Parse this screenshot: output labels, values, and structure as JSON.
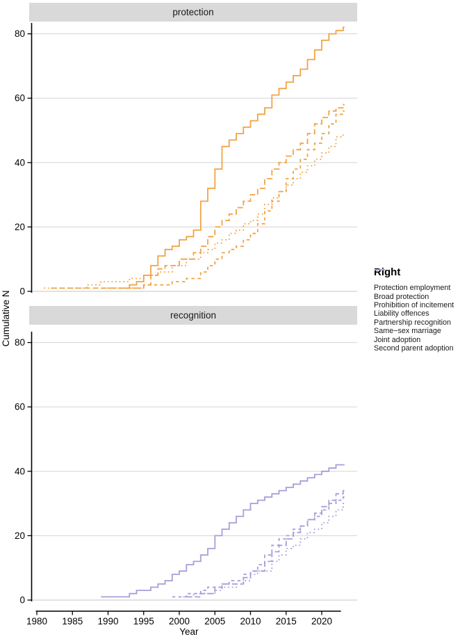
{
  "chart_data": {
    "type": "line",
    "subtype": "cumulative-step",
    "title": "",
    "xlabel": "Year",
    "ylabel": "Cumulative N",
    "x_ticks": [
      1980,
      1985,
      1990,
      1995,
      2000,
      2005,
      2010,
      2015,
      2020
    ],
    "y_ticks": [
      0,
      20,
      40,
      60,
      80
    ],
    "xlim": [
      1980,
      2023
    ],
    "ylim": [
      0,
      85
    ],
    "grid": "horizontal-only",
    "legend_position": "right",
    "colors": {
      "protection": "#F0A345",
      "recognition": "#AB9CD9",
      "strip_bg": "#D9D9D9",
      "gridline": "#D9D9D9",
      "axis": "#000000"
    },
    "legend": {
      "title": "Right",
      "items": [
        {
          "label": "Protection employment",
          "color": "#F0A345",
          "dash": "solid"
        },
        {
          "label": "Broad protection",
          "color": "#F0A345",
          "dash": "longdash"
        },
        {
          "label": "Prohibition of incitement",
          "color": "#F0A345",
          "dash": "dotted"
        },
        {
          "label": "Liability offences",
          "color": "#F0A345",
          "dash": "dashed"
        },
        {
          "label": "Partnership recognition",
          "color": "#AB9CD9",
          "dash": "solid"
        },
        {
          "label": "Same−sex marriage",
          "color": "#AB9CD9",
          "dash": "longdash"
        },
        {
          "label": "Joint adoption",
          "color": "#AB9CD9",
          "dash": "dotted"
        },
        {
          "label": "Second parent adoption",
          "color": "#AB9CD9",
          "dash": "dashed"
        }
      ]
    },
    "facets": [
      {
        "label": "protection",
        "series": [
          {
            "name": "Protection employment",
            "color": "#F0A345",
            "dash": "solid",
            "points": [
              [
                1992,
                1
              ],
              [
                1993,
                2
              ],
              [
                1994,
                3
              ],
              [
                1995,
                5
              ],
              [
                1996,
                8
              ],
              [
                1997,
                11
              ],
              [
                1998,
                13
              ],
              [
                1999,
                14
              ],
              [
                2000,
                16
              ],
              [
                2001,
                17
              ],
              [
                2002,
                19
              ],
              [
                2003,
                28
              ],
              [
                2004,
                32
              ],
              [
                2005,
                38
              ],
              [
                2006,
                45
              ],
              [
                2007,
                47
              ],
              [
                2008,
                49
              ],
              [
                2009,
                51
              ],
              [
                2010,
                53
              ],
              [
                2011,
                55
              ],
              [
                2012,
                57
              ],
              [
                2013,
                61
              ],
              [
                2014,
                63
              ],
              [
                2015,
                65
              ],
              [
                2016,
                67
              ],
              [
                2017,
                69
              ],
              [
                2018,
                72
              ],
              [
                2019,
                75
              ],
              [
                2020,
                78
              ],
              [
                2021,
                80
              ],
              [
                2022,
                81
              ],
              [
                2023,
                82
              ]
            ]
          },
          {
            "name": "Broad protection",
            "color": "#F0A345",
            "dash": "longdash",
            "points": [
              [
                1982,
                1
              ],
              [
                1995,
                2
              ],
              [
                1996,
                5
              ],
              [
                1997,
                7
              ],
              [
                1998,
                8
              ],
              [
                2000,
                10
              ],
              [
                2002,
                12
              ],
              [
                2003,
                14
              ],
              [
                2004,
                17
              ],
              [
                2005,
                20
              ],
              [
                2006,
                22
              ],
              [
                2007,
                24
              ],
              [
                2008,
                26
              ],
              [
                2009,
                28
              ],
              [
                2010,
                30
              ],
              [
                2011,
                32
              ],
              [
                2012,
                35
              ],
              [
                2013,
                38
              ],
              [
                2014,
                40
              ],
              [
                2015,
                42
              ],
              [
                2016,
                44
              ],
              [
                2017,
                46
              ],
              [
                2018,
                49
              ],
              [
                2019,
                52
              ],
              [
                2020,
                54
              ],
              [
                2021,
                56
              ],
              [
                2022,
                57
              ],
              [
                2023,
                58
              ]
            ]
          },
          {
            "name": "Prohibition of incitement",
            "color": "#F0A345",
            "dash": "dotted",
            "points": [
              [
                1981,
                1
              ],
              [
                1987,
                2
              ],
              [
                1989,
                3
              ],
              [
                1993,
                4
              ],
              [
                1995,
                5
              ],
              [
                1997,
                6
              ],
              [
                1999,
                8
              ],
              [
                2001,
                10
              ],
              [
                2003,
                12
              ],
              [
                2004,
                13
              ],
              [
                2005,
                15
              ],
              [
                2006,
                16
              ],
              [
                2007,
                18
              ],
              [
                2008,
                19
              ],
              [
                2009,
                21
              ],
              [
                2010,
                22
              ],
              [
                2011,
                24
              ],
              [
                2012,
                27
              ],
              [
                2013,
                29
              ],
              [
                2014,
                31
              ],
              [
                2015,
                33
              ],
              [
                2016,
                35
              ],
              [
                2017,
                37
              ],
              [
                2018,
                39
              ],
              [
                2019,
                41
              ],
              [
                2020,
                43
              ],
              [
                2021,
                45
              ],
              [
                2022,
                48
              ],
              [
                2023,
                49
              ]
            ]
          },
          {
            "name": "Liability offences",
            "color": "#F0A345",
            "dash": "dashed",
            "points": [
              [
                1989,
                1
              ],
              [
                1995,
                2
              ],
              [
                1999,
                3
              ],
              [
                2001,
                4
              ],
              [
                2003,
                6
              ],
              [
                2004,
                8
              ],
              [
                2005,
                10
              ],
              [
                2006,
                12
              ],
              [
                2007,
                13
              ],
              [
                2008,
                14
              ],
              [
                2009,
                16
              ],
              [
                2010,
                18
              ],
              [
                2011,
                21
              ],
              [
                2012,
                25
              ],
              [
                2013,
                28
              ],
              [
                2014,
                31
              ],
              [
                2015,
                35
              ],
              [
                2016,
                38
              ],
              [
                2017,
                41
              ],
              [
                2018,
                44
              ],
              [
                2019,
                46
              ],
              [
                2020,
                49
              ],
              [
                2021,
                52
              ],
              [
                2022,
                55
              ],
              [
                2023,
                56
              ]
            ]
          }
        ]
      },
      {
        "label": "recognition",
        "series": [
          {
            "name": "Partnership recognition",
            "color": "#AB9CD9",
            "dash": "solid",
            "points": [
              [
                1989,
                1
              ],
              [
                1993,
                2
              ],
              [
                1994,
                3
              ],
              [
                1996,
                4
              ],
              [
                1997,
                5
              ],
              [
                1998,
                6
              ],
              [
                1999,
                8
              ],
              [
                2000,
                9
              ],
              [
                2001,
                11
              ],
              [
                2002,
                12
              ],
              [
                2003,
                14
              ],
              [
                2004,
                16
              ],
              [
                2005,
                20
              ],
              [
                2006,
                22
              ],
              [
                2007,
                24
              ],
              [
                2008,
                26
              ],
              [
                2009,
                28
              ],
              [
                2010,
                30
              ],
              [
                2011,
                31
              ],
              [
                2012,
                32
              ],
              [
                2013,
                33
              ],
              [
                2014,
                34
              ],
              [
                2015,
                35
              ],
              [
                2016,
                36
              ],
              [
                2017,
                37
              ],
              [
                2018,
                38
              ],
              [
                2019,
                39
              ],
              [
                2020,
                40
              ],
              [
                2021,
                41
              ],
              [
                2022,
                42
              ]
            ]
          },
          {
            "name": "Same−sex marriage",
            "color": "#AB9CD9",
            "dash": "longdash",
            "points": [
              [
                2001,
                1
              ],
              [
                2003,
                2
              ],
              [
                2005,
                4
              ],
              [
                2006,
                5
              ],
              [
                2009,
                7
              ],
              [
                2010,
                9
              ],
              [
                2012,
                12
              ],
              [
                2013,
                15
              ],
              [
                2014,
                17
              ],
              [
                2015,
                19
              ],
              [
                2016,
                21
              ],
              [
                2017,
                23
              ],
              [
                2018,
                25
              ],
              [
                2019,
                27
              ],
              [
                2020,
                29
              ],
              [
                2021,
                31
              ],
              [
                2022,
                33
              ],
              [
                2023,
                34
              ]
            ]
          },
          {
            "name": "Joint adoption",
            "color": "#AB9CD9",
            "dash": "dotted",
            "points": [
              [
                2000,
                1
              ],
              [
                2002,
                2
              ],
              [
                2005,
                3
              ],
              [
                2006,
                4
              ],
              [
                2008,
                5
              ],
              [
                2009,
                6
              ],
              [
                2010,
                8
              ],
              [
                2011,
                9
              ],
              [
                2013,
                12
              ],
              [
                2014,
                14
              ],
              [
                2015,
                16
              ],
              [
                2016,
                17
              ],
              [
                2017,
                19
              ],
              [
                2018,
                21
              ],
              [
                2019,
                22
              ],
              [
                2020,
                24
              ],
              [
                2021,
                26
              ],
              [
                2022,
                28
              ],
              [
                2023,
                30
              ]
            ]
          },
          {
            "name": "Second parent adoption",
            "color": "#AB9CD9",
            "dash": "dashed",
            "points": [
              [
                1999,
                1
              ],
              [
                2001,
                2
              ],
              [
                2003,
                3
              ],
              [
                2004,
                4
              ],
              [
                2006,
                5
              ],
              [
                2007,
                6
              ],
              [
                2009,
                8
              ],
              [
                2010,
                9
              ],
              [
                2011,
                11
              ],
              [
                2012,
                14
              ],
              [
                2013,
                17
              ],
              [
                2014,
                19
              ],
              [
                2015,
                20
              ],
              [
                2016,
                22
              ],
              [
                2017,
                23
              ],
              [
                2018,
                25
              ],
              [
                2019,
                26
              ],
              [
                2020,
                28
              ],
              [
                2021,
                30
              ],
              [
                2022,
                31
              ],
              [
                2023,
                32
              ]
            ]
          }
        ]
      }
    ]
  }
}
